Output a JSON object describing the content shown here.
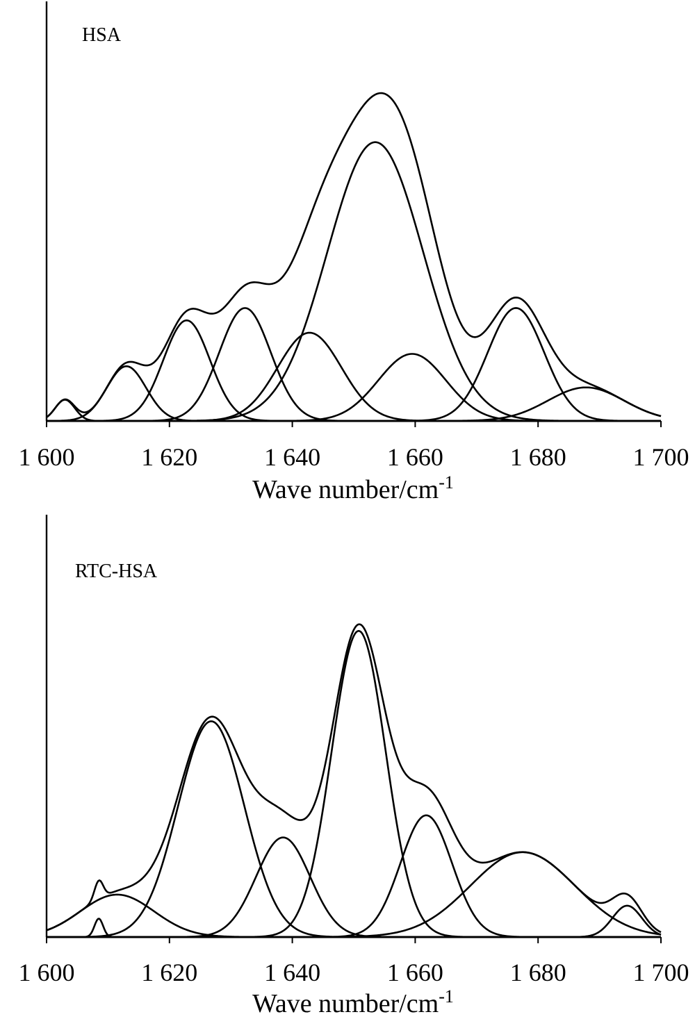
{
  "chart_data": [
    {
      "type": "line",
      "title": "",
      "panel_label": "HSA",
      "xlabel": "Wave number/cm",
      "xlabel_superscript": "-1",
      "ylabel": "",
      "xlim": [
        1600,
        1700
      ],
      "ylim": [
        0,
        1
      ],
      "x_ticks": [
        1600,
        1620,
        1640,
        1660,
        1680,
        1700
      ],
      "x_tick_labels": [
        "1 600",
        "1 620",
        "1 640",
        "1 660",
        "1 680",
        "1 700"
      ],
      "y_axis_ticks_shown": false,
      "grid": false,
      "legend": "none",
      "line_color": "#000000",
      "component_peaks": [
        {
          "center": 1603.0,
          "amplitude": 0.06,
          "sigma": 1.6
        },
        {
          "center": 1613.0,
          "amplitude": 0.155,
          "sigma": 3.2
        },
        {
          "center": 1622.8,
          "amplitude": 0.285,
          "sigma": 3.8
        },
        {
          "center": 1632.3,
          "amplitude": 0.32,
          "sigma": 4.2
        },
        {
          "center": 1642.8,
          "amplitude": 0.25,
          "sigma": 5.2
        },
        {
          "center": 1653.5,
          "amplitude": 0.79,
          "sigma": 7.8
        },
        {
          "center": 1659.5,
          "amplitude": 0.19,
          "sigma": 5.5
        },
        {
          "center": 1676.4,
          "amplitude": 0.32,
          "sigma": 4.6
        },
        {
          "center": 1687.8,
          "amplitude": 0.095,
          "sigma": 6.2
        }
      ],
      "envelope": "sum of component peaks"
    },
    {
      "type": "line",
      "title": "",
      "panel_label": "RTC-HSA",
      "xlabel": "Wave number/cm",
      "xlabel_superscript": "-1",
      "ylabel": "",
      "xlim": [
        1600,
        1700
      ],
      "ylim": [
        0,
        1
      ],
      "x_ticks": [
        1600,
        1620,
        1640,
        1660,
        1680,
        1700
      ],
      "x_tick_labels": [
        "1 600",
        "1 620",
        "1 640",
        "1 660",
        "1 680",
        "1 700"
      ],
      "y_axis_ticks_shown": false,
      "grid": false,
      "legend": "none",
      "line_color": "#000000",
      "component_peaks": [
        {
          "center": 1608.5,
          "amplitude": 0.05,
          "sigma": 0.7
        },
        {
          "center": 1611.5,
          "amplitude": 0.115,
          "sigma": 6.0
        },
        {
          "center": 1626.8,
          "amplitude": 0.585,
          "sigma": 5.4
        },
        {
          "center": 1638.5,
          "amplitude": 0.27,
          "sigma": 4.4
        },
        {
          "center": 1650.8,
          "amplitude": 0.83,
          "sigma": 4.4
        },
        {
          "center": 1661.8,
          "amplitude": 0.33,
          "sigma": 4.2
        },
        {
          "center": 1677.5,
          "amplitude": 0.23,
          "sigma": 8.5
        },
        {
          "center": 1694.5,
          "amplitude": 0.085,
          "sigma": 2.4
        }
      ],
      "envelope": "sum of component peaks"
    }
  ]
}
